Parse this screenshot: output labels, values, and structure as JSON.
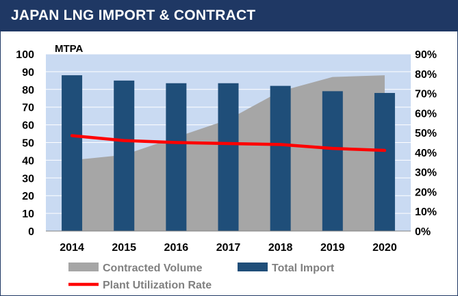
{
  "header": {
    "title": "JAPAN LNG IMPORT & CONTRACT"
  },
  "chart_data": {
    "type": "bar",
    "unit_label": "MTPA",
    "categories": [
      "2014",
      "2015",
      "2016",
      "2017",
      "2018",
      "2019",
      "2020"
    ],
    "y_left": {
      "min": 0,
      "max": 100,
      "ticks": [
        "0",
        "10",
        "20",
        "30",
        "40",
        "50",
        "60",
        "70",
        "80",
        "90",
        "100"
      ]
    },
    "y_right": {
      "min": 0,
      "max": 0.9,
      "ticks": [
        "0%",
        "10%",
        "20%",
        "30%",
        "40%",
        "50%",
        "60%",
        "70%",
        "80%",
        "90%"
      ]
    },
    "series": [
      {
        "name": "Contracted Volume",
        "kind": "area",
        "axis": "left",
        "values": [
          40,
          43,
          53,
          63,
          79,
          87,
          88
        ]
      },
      {
        "name": "Total Import",
        "kind": "bar",
        "axis": "left",
        "values": [
          88,
          85,
          83.5,
          83.5,
          82,
          79,
          78
        ]
      },
      {
        "name": "Plant Utilization Rate",
        "kind": "line",
        "axis": "right",
        "values": [
          0.485,
          0.46,
          0.45,
          0.445,
          0.44,
          0.42,
          0.41
        ]
      }
    ],
    "legend": {
      "items": [
        "Contracted Volume",
        "Total Import",
        "Plant Utilization Rate"
      ],
      "position": "bottom"
    },
    "grid": true,
    "colors": {
      "plot_bg": "#c9daf2",
      "area": "#a6a6a6",
      "bars": "#1f4e79",
      "line": "#ff0000",
      "title_bg": "#1f3864"
    }
  }
}
